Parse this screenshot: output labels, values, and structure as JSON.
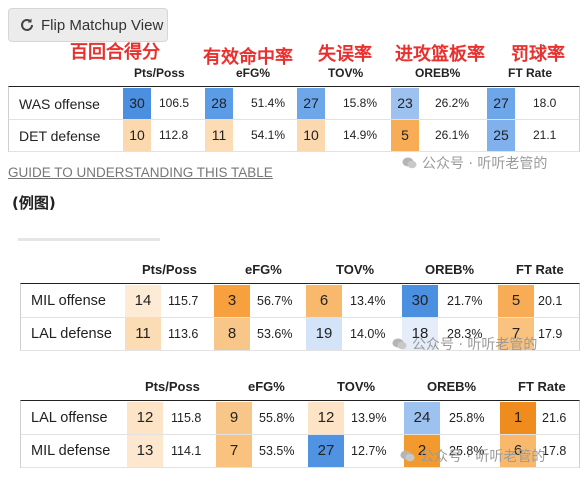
{
  "flip_button": {
    "label": "Flip Matchup View",
    "icon": "refresh-icon"
  },
  "annotations": {
    "pts_poss": "百回合得分",
    "efg": "有效命中率",
    "tov": "失误率",
    "oreb": "进攻篮板率",
    "ft": "罚球率"
  },
  "table1": {
    "headers": [
      "Pts/Poss",
      "eFG%",
      "TOV%",
      "OREB%",
      "FT Rate"
    ],
    "rows": [
      {
        "label": "WAS offense",
        "cells": [
          {
            "rank": "30",
            "value": "106.5",
            "color": "#4a8fe0"
          },
          {
            "rank": "28",
            "value": "51.4%",
            "color": "#5c9be6"
          },
          {
            "rank": "27",
            "value": "15.8%",
            "color": "#6ea6ea"
          },
          {
            "rank": "23",
            "value": "26.2%",
            "color": "#9ec2f0"
          },
          {
            "rank": "27",
            "value": "18.0",
            "color": "#6ea6ea"
          }
        ]
      },
      {
        "label": "DET defense",
        "cells": [
          {
            "rank": "10",
            "value": "112.8",
            "color": "#fbd8ad"
          },
          {
            "rank": "11",
            "value": "54.1%",
            "color": "#fcdcb4"
          },
          {
            "rank": "10",
            "value": "14.9%",
            "color": "#fbd8ad"
          },
          {
            "rank": "5",
            "value": "26.1%",
            "color": "#f7ac55"
          },
          {
            "rank": "25",
            "value": "21.1",
            "color": "#80b1ec"
          }
        ]
      }
    ]
  },
  "guide_link": "GUIDE TO UNDERSTANDING THIS TABLE",
  "example_label": "(例图)",
  "table2": {
    "headers": [
      "Pts/Poss",
      "eFG%",
      "TOV%",
      "OREB%",
      "FT Rate"
    ],
    "rows": [
      {
        "label": "MIL offense",
        "cells": [
          {
            "rank": "14",
            "value": "115.7",
            "color": "#fdebd6"
          },
          {
            "rank": "3",
            "value": "56.7%",
            "color": "#f6a03e"
          },
          {
            "rank": "6",
            "value": "13.4%",
            "color": "#f8b96c"
          },
          {
            "rank": "30",
            "value": "21.7%",
            "color": "#4a8fe0"
          },
          {
            "rank": "5",
            "value": "20.1",
            "color": "#f7ac55"
          }
        ]
      },
      {
        "label": "LAL defense",
        "cells": [
          {
            "rank": "11",
            "value": "113.6",
            "color": "#fcdcb4"
          },
          {
            "rank": "8",
            "value": "53.6%",
            "color": "#f9c68a"
          },
          {
            "rank": "19",
            "value": "14.0%",
            "color": "#d3e3f8"
          },
          {
            "rank": "18",
            "value": "28.3%",
            "color": "#e4edf9"
          },
          {
            "rank": "7",
            "value": "17.9",
            "color": "#f9c27e"
          }
        ]
      }
    ]
  },
  "table3": {
    "headers": [
      "Pts/Poss",
      "eFG%",
      "TOV%",
      "OREB%",
      "FT Rate"
    ],
    "rows": [
      {
        "label": "LAL offense",
        "cells": [
          {
            "rank": "12",
            "value": "115.8",
            "color": "#fde4c6"
          },
          {
            "rank": "9",
            "value": "55.8%",
            "color": "#f9c68a"
          },
          {
            "rank": "12",
            "value": "13.9%",
            "color": "#fde4c6"
          },
          {
            "rank": "24",
            "value": "25.8%",
            "color": "#9ec2f0"
          },
          {
            "rank": "1",
            "value": "21.6",
            "color": "#f08c1e"
          }
        ]
      },
      {
        "label": "MIL defense",
        "cells": [
          {
            "rank": "13",
            "value": "114.1",
            "color": "#fde8cf"
          },
          {
            "rank": "7",
            "value": "53.5%",
            "color": "#f9c27e"
          },
          {
            "rank": "27",
            "value": "12.7%",
            "color": "#4f93e2"
          },
          {
            "rank": "2",
            "value": "25.8%",
            "color": "#f39a2e"
          },
          {
            "rank": "6",
            "value": "17.8",
            "color": "#f8b96c"
          }
        ]
      }
    ]
  },
  "watermark": "公众号 · 听听老管的"
}
